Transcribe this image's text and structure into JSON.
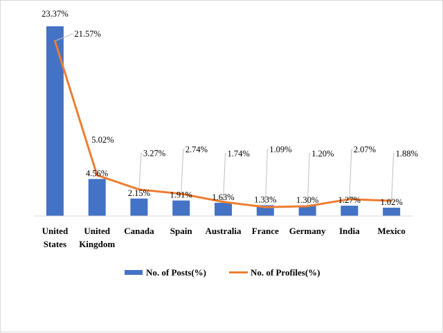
{
  "chart_data": {
    "type": "bar",
    "categories": [
      [
        "United",
        "States"
      ],
      [
        "United",
        "Kingdom"
      ],
      [
        "Canada"
      ],
      [
        "Spain"
      ],
      [
        "Australia"
      ],
      [
        "France"
      ],
      [
        "Germany"
      ],
      [
        "India"
      ],
      [
        "Mexico"
      ]
    ],
    "series": [
      {
        "name": "No. of Posts(%)",
        "type": "bar",
        "color": "#4472C4",
        "values": [
          23.37,
          4.56,
          2.15,
          1.91,
          1.63,
          1.33,
          1.3,
          1.27,
          1.02
        ],
        "labels": [
          "23.37%",
          "4.56%",
          "2.15%",
          "1.91%",
          "1.63%",
          "1.33%",
          "1.30%",
          "1.27%",
          "1.02%"
        ]
      },
      {
        "name": "No. of Profiles(%)",
        "type": "line",
        "color": "#ED7D31",
        "values": [
          21.57,
          5.02,
          3.27,
          2.74,
          1.74,
          1.09,
          1.2,
          2.07,
          1.88
        ],
        "labels": [
          "21.57%",
          "5.02%",
          "3.27%",
          "2.74%",
          "1.74%",
          "1.09%",
          "1.20%",
          "2.07%",
          "1.88%"
        ]
      }
    ],
    "title": "",
    "xlabel": "",
    "ylabel": "",
    "ylim": [
      0,
      23.37
    ],
    "grid": false,
    "legend_position": "bottom"
  }
}
